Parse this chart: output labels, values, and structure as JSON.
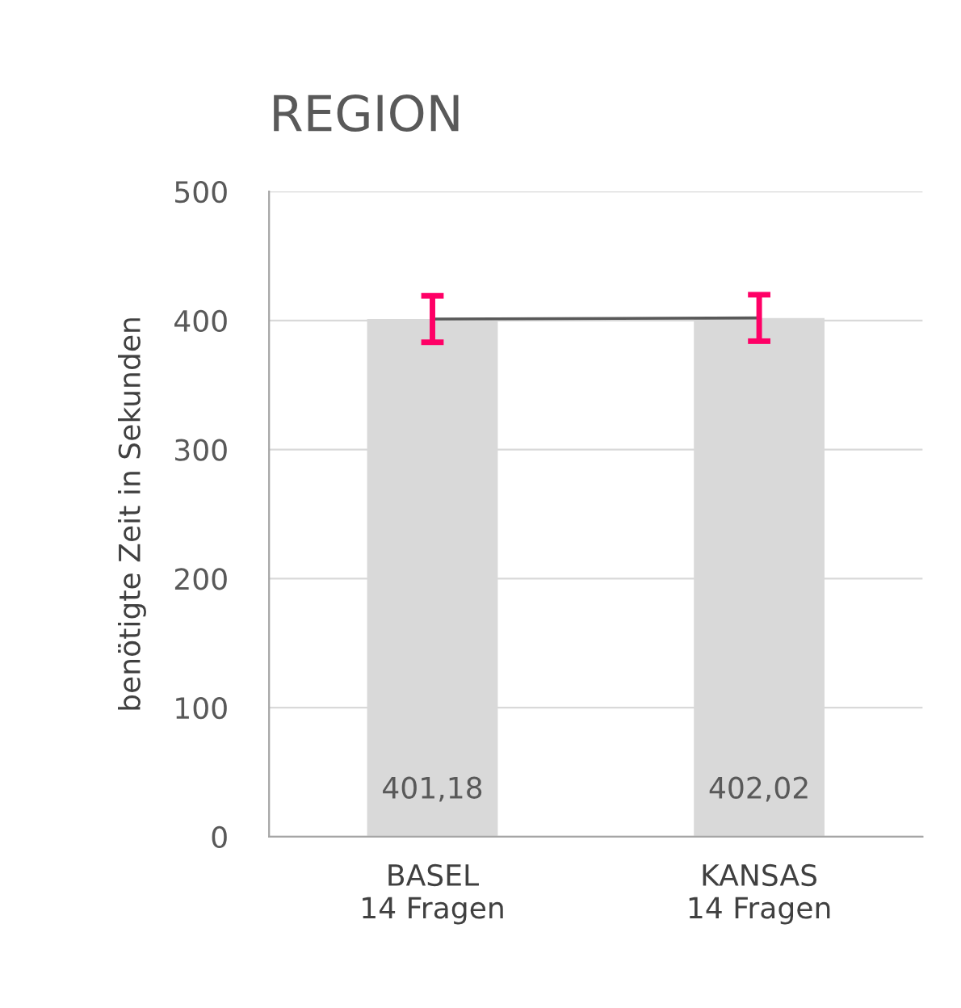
{
  "chart_data": {
    "type": "bar",
    "title": "REGION",
    "ylabel": "benötigte Zeit in Sekunden",
    "categories": [
      "BASEL\n14 Fragen",
      "KANSAS\n14 Fragen"
    ],
    "series": [
      {
        "color": "#d9d9d9",
        "values": [
          401.18,
          402.02
        ],
        "errors": [
          18,
          18
        ],
        "value_labels": [
          "401,18",
          "402,02"
        ]
      },
      {
        "type": "line",
        "color": "#595959",
        "values": [
          401.18,
          402.02
        ]
      }
    ],
    "ylim": [
      0,
      500
    ],
    "yticks": [
      0,
      100,
      200,
      300,
      400,
      500
    ],
    "grid": "y"
  }
}
